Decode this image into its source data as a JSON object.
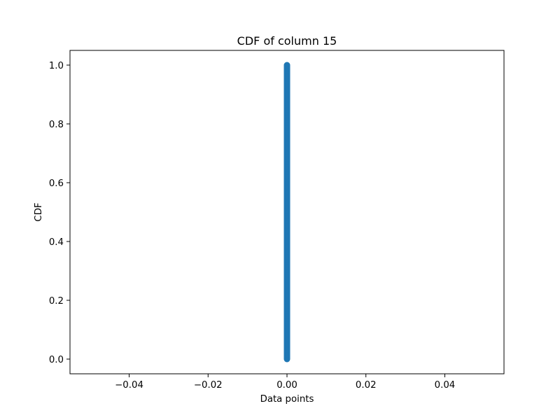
{
  "chart_data": {
    "type": "scatter",
    "title": "CDF of column 15",
    "xlabel": "Data points",
    "ylabel": "CDF",
    "xlim": [
      -0.055,
      0.055
    ],
    "ylim": [
      -0.05,
      1.05
    ],
    "xticks": [
      -0.04,
      -0.02,
      0.0,
      0.02,
      0.04
    ],
    "xtick_labels": [
      "−0.04",
      "−0.02",
      "0.00",
      "0.02",
      "0.04"
    ],
    "yticks": [
      0.0,
      0.2,
      0.4,
      0.6,
      0.8,
      1.0
    ],
    "ytick_labels": [
      "0.0",
      "0.2",
      "0.4",
      "0.6",
      "0.8",
      "1.0"
    ],
    "grid": false,
    "series": [
      {
        "color": "#1f77b4",
        "x_constant": 0.0,
        "y_range": [
          0.0,
          1.0
        ]
      }
    ]
  }
}
